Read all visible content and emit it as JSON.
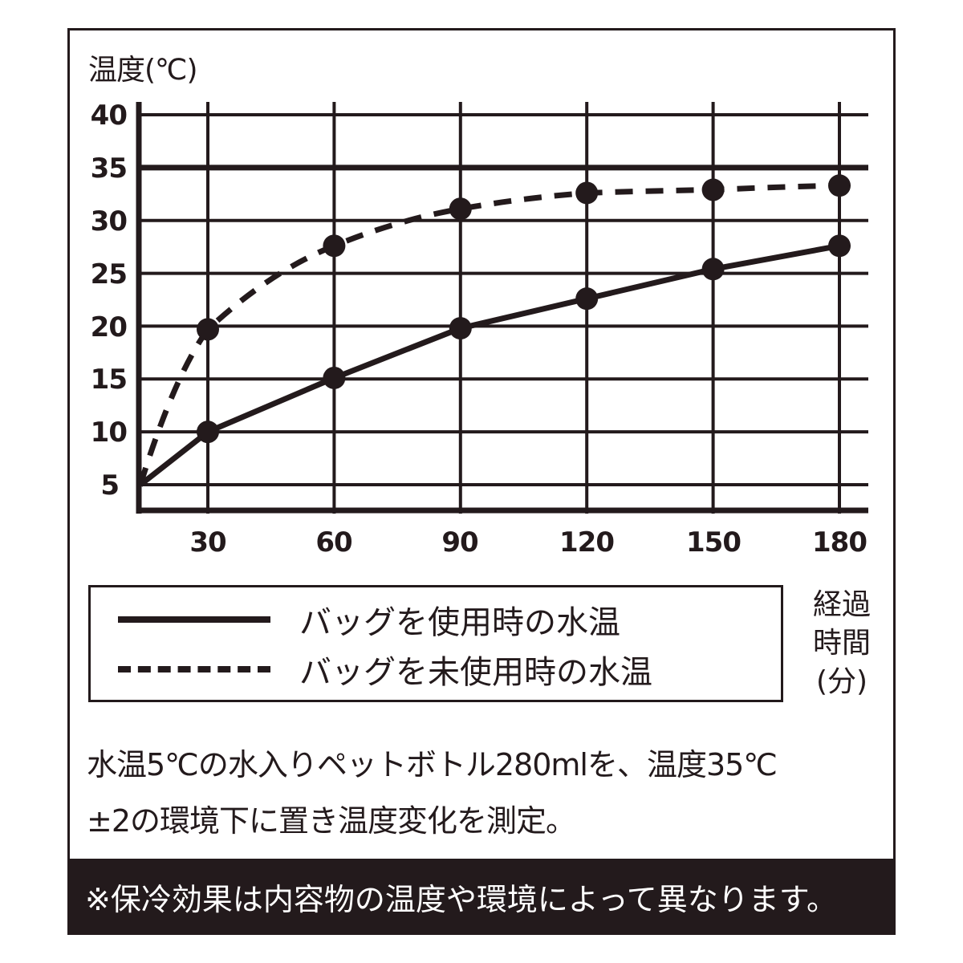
{
  "chart": {
    "y_axis_label": "温度(℃)",
    "x_axis_label_lines": [
      "経過",
      "時間",
      "(分)"
    ],
    "y_ticks": [
      "40",
      "35",
      "30",
      "25",
      "20",
      "15",
      "10",
      "5"
    ],
    "x_ticks": [
      "30",
      "60",
      "90",
      "120",
      "150",
      "180"
    ]
  },
  "legend": {
    "items": [
      {
        "label": "バッグを使用時の水温",
        "style": "solid"
      },
      {
        "label": "バッグを未使用時の水温",
        "style": "dashed"
      }
    ]
  },
  "note": {
    "line1": "水温5℃の水入りペットボトル280mlを、温度35℃",
    "line2": "±2の環境下に置き温度変化を測定。"
  },
  "footer": {
    "text": "※保冷効果は内容物の温度や環境によって異なります。"
  },
  "colors": {
    "ink": "#231a1c",
    "background": "#ffffff",
    "footer_text": "#ffffff"
  },
  "chart_data": {
    "type": "line",
    "title": "",
    "xlabel": "経過時間(分)",
    "ylabel": "温度(℃)",
    "x": [
      0,
      30,
      60,
      90,
      120,
      150,
      180
    ],
    "series": [
      {
        "name": "バッグを使用時の水温",
        "style": "solid",
        "values": [
          5,
          10,
          15.1,
          19.8,
          22.6,
          25.4,
          27.6
        ]
      },
      {
        "name": "バッグを未使用時の水温",
        "style": "dashed",
        "values": [
          5,
          19.7,
          27.6,
          31.1,
          32.6,
          32.9,
          33.3
        ]
      }
    ],
    "xticks": [
      30,
      60,
      90,
      120,
      150,
      180
    ],
    "yticks": [
      5,
      10,
      15,
      20,
      25,
      30,
      35,
      40
    ],
    "ylim": [
      2.5,
      41
    ],
    "xlim": [
      0,
      185
    ],
    "grid": true,
    "legend_position": "below"
  }
}
